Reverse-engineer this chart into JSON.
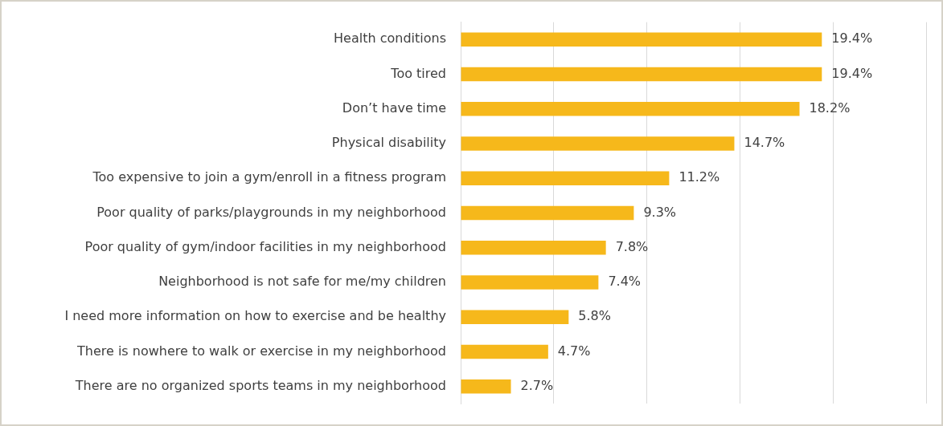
{
  "chart_data": {
    "type": "bar",
    "orientation": "horizontal",
    "categories": [
      "Health conditions",
      "Too tired",
      "Don’t have time",
      "Physical disability",
      "Too expensive to join a gym/enroll in a fitness program",
      "Poor quality of parks/playgrounds in my neighborhood",
      "Poor quality of gym/indoor facilities in my neighborhood",
      "Neighborhood is not safe for me/my children",
      "I need more information on how to exercise and be healthy",
      "There is nowhere to walk or exercise in my neighborhood",
      "There are no organized sports teams in my neighborhood"
    ],
    "values": [
      19.4,
      19.4,
      18.2,
      14.7,
      11.2,
      9.3,
      7.8,
      7.4,
      5.8,
      4.7,
      2.7
    ],
    "value_labels": [
      "19.4%",
      "19.4%",
      "18.2%",
      "14.7%",
      "11.2%",
      "9.3%",
      "7.8%",
      "7.4%",
      "5.8%",
      "4.7%",
      "2.7%"
    ],
    "color": "#f6b81b",
    "xlim": [
      0,
      25
    ],
    "xticks": [
      {
        "value": 0,
        "label": null
      },
      {
        "value": 5,
        "label": null
      },
      {
        "value": 10,
        "label": null
      },
      {
        "value": 15,
        "label": null
      },
      {
        "value": 20,
        "label": null
      },
      {
        "value": 25,
        "label": null
      }
    ],
    "tick_labels": "y",
    "grid": "x",
    "legend": false
  }
}
